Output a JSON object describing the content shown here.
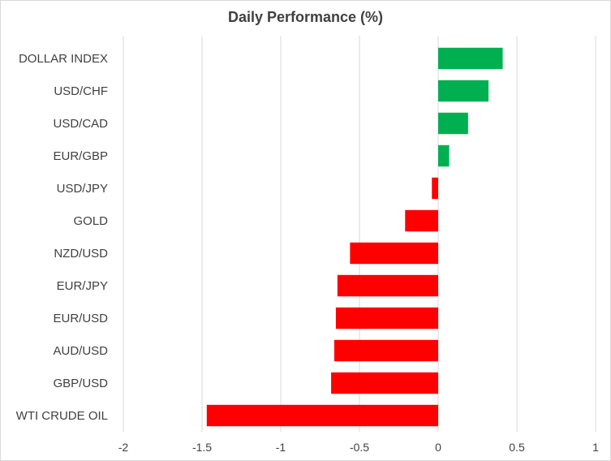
{
  "chart_data": {
    "type": "bar",
    "orientation": "horizontal",
    "title": "Daily Performance (%)",
    "xlim": [
      -2,
      1
    ],
    "xticks": [
      -2,
      -1.5,
      -1,
      -0.5,
      0,
      0.5,
      1
    ],
    "xtick_labels": [
      "-2",
      "-1.5",
      "-1",
      "-0.5",
      "0",
      "0.5",
      "1"
    ],
    "grid": "vertical",
    "categories": [
      "DOLLAR INDEX",
      "USD/CHF",
      "USD/CAD",
      "EUR/GBP",
      "USD/JPY",
      "GOLD",
      "NZD/USD",
      "EUR/JPY",
      "EUR/USD",
      "AUD/USD",
      "GBP/USD",
      "WTI CRUDE OIL"
    ],
    "values": [
      0.41,
      0.32,
      0.19,
      0.07,
      -0.04,
      -0.21,
      -0.56,
      -0.64,
      -0.65,
      -0.66,
      -0.68,
      -1.47
    ],
    "colors": {
      "positive": "#00b050",
      "negative": "#ff0000",
      "grid": "#d9d9d9",
      "text": "#404040"
    }
  }
}
